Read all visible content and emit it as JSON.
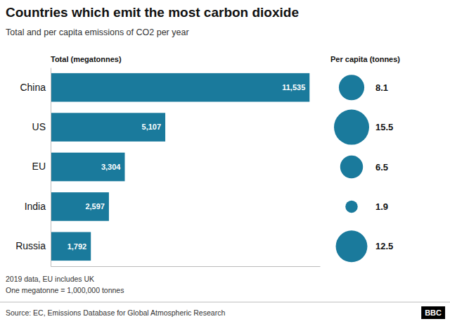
{
  "chart_data": {
    "type": "bar",
    "orientation": "horizontal",
    "title": "Countries which emit the most carbon dioxide",
    "subtitle": "Total and per capita emissions of CO2 per year",
    "categories": [
      "China",
      "US",
      "EU",
      "India",
      "Russia"
    ],
    "series": [
      {
        "name": "Total (megatonnes)",
        "type": "bar",
        "color": "#1a7a9c",
        "values": [
          11535,
          5107,
          3304,
          2597,
          1792
        ],
        "value_labels": [
          "11,535",
          "5,107",
          "3,304",
          "2,597",
          "1,792"
        ]
      },
      {
        "name": "Per capita (tonnes)",
        "type": "bubble",
        "color": "#1a7a9c",
        "values": [
          8.1,
          15.5,
          6.5,
          1.9,
          12.5
        ],
        "value_labels": [
          "8.1",
          "15.5",
          "6.5",
          "1.9",
          "12.5"
        ]
      }
    ],
    "xlim": [
      0,
      11996.4
    ],
    "tick_labels": "y",
    "data_labels": true,
    "annotations": [
      "2019 data, EU includes UK",
      "One megatonne = 1,000,000 tonnes",
      "Source: EC, Emissions Database for Global Atmospheric Research",
      "BBC"
    ]
  }
}
